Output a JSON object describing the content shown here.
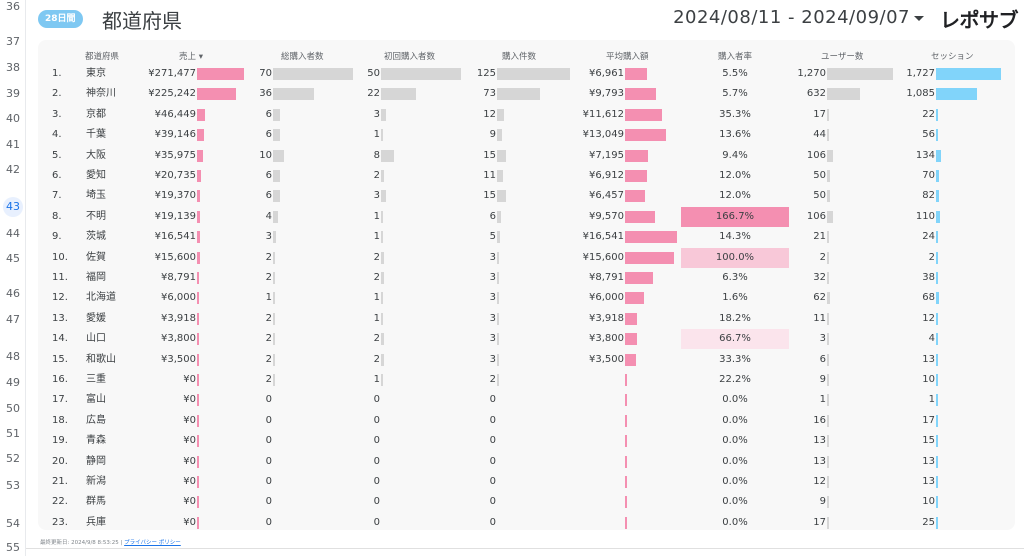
{
  "gutter_lines": [
    "36",
    "37",
    "38",
    "39",
    "40",
    "41",
    "42",
    "43",
    "44",
    "45",
    "46",
    "47",
    "48",
    "49",
    "50",
    "51",
    "52",
    "53",
    "54",
    "55"
  ],
  "gutter_active": "43",
  "header": {
    "badge": "28日間",
    "title": "都道府県",
    "date_range": "2024/08/11 - 2024/09/07",
    "brand": "レポサブ"
  },
  "columns": {
    "pref": "都道府県",
    "sales": "売上 ▾",
    "total_buyers": "総購入者数",
    "first_buyers": "初回購入者数",
    "orders": "購入件数",
    "avg": "平均購入額",
    "rate": "購入者率",
    "users": "ユーザー数",
    "sessions": "セッション"
  },
  "colors": {
    "pink": "#f48fb1",
    "grey": "#d6d6d6",
    "blue": "#81d4fa",
    "rate_strong": "#f48fb1",
    "rate_mid": "#f8c8d8",
    "rate_light": "#fbe4ec"
  },
  "max": {
    "sales": 271477,
    "buyers": 70,
    "first": 50,
    "orders": 125,
    "avg": 16541,
    "rate": 166.7,
    "users": 1270,
    "sessions": 1727
  },
  "rows": [
    {
      "idx": "1.",
      "pref": "東京",
      "sales": "¥271,477",
      "sales_v": 271477,
      "tb": "70",
      "tb_v": 70,
      "fb": "50",
      "fb_v": 50,
      "od": "125",
      "od_v": 125,
      "avg": "¥6,961",
      "avg_v": 6961,
      "rate": "5.5%",
      "rate_v": 5.5,
      "users": "1,270",
      "users_v": 1270,
      "sess": "1,727",
      "sess_v": 1727
    },
    {
      "idx": "2.",
      "pref": "神奈川",
      "sales": "¥225,242",
      "sales_v": 225242,
      "tb": "36",
      "tb_v": 36,
      "fb": "22",
      "fb_v": 22,
      "od": "73",
      "od_v": 73,
      "avg": "¥9,793",
      "avg_v": 9793,
      "rate": "5.7%",
      "rate_v": 5.7,
      "users": "632",
      "users_v": 632,
      "sess": "1,085",
      "sess_v": 1085
    },
    {
      "idx": "3.",
      "pref": "京都",
      "sales": "¥46,449",
      "sales_v": 46449,
      "tb": "6",
      "tb_v": 6,
      "fb": "3",
      "fb_v": 3,
      "od": "12",
      "od_v": 12,
      "avg": "¥11,612",
      "avg_v": 11612,
      "rate": "35.3%",
      "rate_v": 35.3,
      "users": "17",
      "users_v": 17,
      "sess": "22",
      "sess_v": 22
    },
    {
      "idx": "4.",
      "pref": "千葉",
      "sales": "¥39,146",
      "sales_v": 39146,
      "tb": "6",
      "tb_v": 6,
      "fb": "1",
      "fb_v": 1,
      "od": "9",
      "od_v": 9,
      "avg": "¥13,049",
      "avg_v": 13049,
      "rate": "13.6%",
      "rate_v": 13.6,
      "users": "44",
      "users_v": 44,
      "sess": "56",
      "sess_v": 56
    },
    {
      "idx": "5.",
      "pref": "大阪",
      "sales": "¥35,975",
      "sales_v": 35975,
      "tb": "10",
      "tb_v": 10,
      "fb": "8",
      "fb_v": 8,
      "od": "15",
      "od_v": 15,
      "avg": "¥7,195",
      "avg_v": 7195,
      "rate": "9.4%",
      "rate_v": 9.4,
      "users": "106",
      "users_v": 106,
      "sess": "134",
      "sess_v": 134
    },
    {
      "idx": "6.",
      "pref": "愛知",
      "sales": "¥20,735",
      "sales_v": 20735,
      "tb": "6",
      "tb_v": 6,
      "fb": "2",
      "fb_v": 2,
      "od": "11",
      "od_v": 11,
      "avg": "¥6,912",
      "avg_v": 6912,
      "rate": "12.0%",
      "rate_v": 12.0,
      "users": "50",
      "users_v": 50,
      "sess": "70",
      "sess_v": 70
    },
    {
      "idx": "7.",
      "pref": "埼玉",
      "sales": "¥19,370",
      "sales_v": 19370,
      "tb": "6",
      "tb_v": 6,
      "fb": "3",
      "fb_v": 3,
      "od": "15",
      "od_v": 15,
      "avg": "¥6,457",
      "avg_v": 6457,
      "rate": "12.0%",
      "rate_v": 12.0,
      "users": "50",
      "users_v": 50,
      "sess": "82",
      "sess_v": 82
    },
    {
      "idx": "8.",
      "pref": "不明",
      "sales": "¥19,139",
      "sales_v": 19139,
      "tb": "4",
      "tb_v": 4,
      "fb": "1",
      "fb_v": 1,
      "od": "6",
      "od_v": 6,
      "avg": "¥9,570",
      "avg_v": 9570,
      "rate": "166.7%",
      "rate_v": 166.7,
      "users": "106",
      "users_v": 106,
      "sess": "110",
      "sess_v": 110
    },
    {
      "idx": "9.",
      "pref": "茨城",
      "sales": "¥16,541",
      "sales_v": 16541,
      "tb": "3",
      "tb_v": 3,
      "fb": "1",
      "fb_v": 1,
      "od": "5",
      "od_v": 5,
      "avg": "¥16,541",
      "avg_v": 16541,
      "rate": "14.3%",
      "rate_v": 14.3,
      "users": "21",
      "users_v": 21,
      "sess": "24",
      "sess_v": 24
    },
    {
      "idx": "10.",
      "pref": "佐賀",
      "sales": "¥15,600",
      "sales_v": 15600,
      "tb": "2",
      "tb_v": 2,
      "fb": "2",
      "fb_v": 2,
      "od": "3",
      "od_v": 3,
      "avg": "¥15,600",
      "avg_v": 15600,
      "rate": "100.0%",
      "rate_v": 100.0,
      "users": "2",
      "users_v": 2,
      "sess": "2",
      "sess_v": 2
    },
    {
      "idx": "11.",
      "pref": "福岡",
      "sales": "¥8,791",
      "sales_v": 8791,
      "tb": "2",
      "tb_v": 2,
      "fb": "2",
      "fb_v": 2,
      "od": "3",
      "od_v": 3,
      "avg": "¥8,791",
      "avg_v": 8791,
      "rate": "6.3%",
      "rate_v": 6.3,
      "users": "32",
      "users_v": 32,
      "sess": "38",
      "sess_v": 38
    },
    {
      "idx": "12.",
      "pref": "北海道",
      "sales": "¥6,000",
      "sales_v": 6000,
      "tb": "1",
      "tb_v": 1,
      "fb": "1",
      "fb_v": 1,
      "od": "3",
      "od_v": 3,
      "avg": "¥6,000",
      "avg_v": 6000,
      "rate": "1.6%",
      "rate_v": 1.6,
      "users": "62",
      "users_v": 62,
      "sess": "68",
      "sess_v": 68
    },
    {
      "idx": "13.",
      "pref": "愛媛",
      "sales": "¥3,918",
      "sales_v": 3918,
      "tb": "2",
      "tb_v": 2,
      "fb": "1",
      "fb_v": 1,
      "od": "3",
      "od_v": 3,
      "avg": "¥3,918",
      "avg_v": 3918,
      "rate": "18.2%",
      "rate_v": 18.2,
      "users": "11",
      "users_v": 11,
      "sess": "12",
      "sess_v": 12
    },
    {
      "idx": "14.",
      "pref": "山口",
      "sales": "¥3,800",
      "sales_v": 3800,
      "tb": "2",
      "tb_v": 2,
      "fb": "2",
      "fb_v": 2,
      "od": "3",
      "od_v": 3,
      "avg": "¥3,800",
      "avg_v": 3800,
      "rate": "66.7%",
      "rate_v": 66.7,
      "users": "3",
      "users_v": 3,
      "sess": "4",
      "sess_v": 4
    },
    {
      "idx": "15.",
      "pref": "和歌山",
      "sales": "¥3,500",
      "sales_v": 3500,
      "tb": "2",
      "tb_v": 2,
      "fb": "2",
      "fb_v": 2,
      "od": "3",
      "od_v": 3,
      "avg": "¥3,500",
      "avg_v": 3500,
      "rate": "33.3%",
      "rate_v": 33.3,
      "users": "6",
      "users_v": 6,
      "sess": "13",
      "sess_v": 13
    },
    {
      "idx": "16.",
      "pref": "三重",
      "sales": "¥0",
      "sales_v": 0,
      "tb": "2",
      "tb_v": 2,
      "fb": "1",
      "fb_v": 1,
      "od": "2",
      "od_v": 2,
      "avg": "",
      "avg_v": 0,
      "rate": "22.2%",
      "rate_v": 22.2,
      "users": "9",
      "users_v": 9,
      "sess": "10",
      "sess_v": 10
    },
    {
      "idx": "17.",
      "pref": "富山",
      "sales": "¥0",
      "sales_v": 0,
      "tb": "0",
      "tb_v": 0,
      "fb": "0",
      "fb_v": 0,
      "od": "0",
      "od_v": 0,
      "avg": "",
      "avg_v": 0,
      "rate": "0.0%",
      "rate_v": 0,
      "users": "1",
      "users_v": 1,
      "sess": "1",
      "sess_v": 1
    },
    {
      "idx": "18.",
      "pref": "広島",
      "sales": "¥0",
      "sales_v": 0,
      "tb": "0",
      "tb_v": 0,
      "fb": "0",
      "fb_v": 0,
      "od": "0",
      "od_v": 0,
      "avg": "",
      "avg_v": 0,
      "rate": "0.0%",
      "rate_v": 0,
      "users": "16",
      "users_v": 16,
      "sess": "17",
      "sess_v": 17
    },
    {
      "idx": "19.",
      "pref": "青森",
      "sales": "¥0",
      "sales_v": 0,
      "tb": "0",
      "tb_v": 0,
      "fb": "0",
      "fb_v": 0,
      "od": "0",
      "od_v": 0,
      "avg": "",
      "avg_v": 0,
      "rate": "0.0%",
      "rate_v": 0,
      "users": "13",
      "users_v": 13,
      "sess": "15",
      "sess_v": 15
    },
    {
      "idx": "20.",
      "pref": "静岡",
      "sales": "¥0",
      "sales_v": 0,
      "tb": "0",
      "tb_v": 0,
      "fb": "0",
      "fb_v": 0,
      "od": "0",
      "od_v": 0,
      "avg": "",
      "avg_v": 0,
      "rate": "0.0%",
      "rate_v": 0,
      "users": "13",
      "users_v": 13,
      "sess": "13",
      "sess_v": 13
    },
    {
      "idx": "21.",
      "pref": "新潟",
      "sales": "¥0",
      "sales_v": 0,
      "tb": "0",
      "tb_v": 0,
      "fb": "0",
      "fb_v": 0,
      "od": "0",
      "od_v": 0,
      "avg": "",
      "avg_v": 0,
      "rate": "0.0%",
      "rate_v": 0,
      "users": "12",
      "users_v": 12,
      "sess": "13",
      "sess_v": 13
    },
    {
      "idx": "22.",
      "pref": "群馬",
      "sales": "¥0",
      "sales_v": 0,
      "tb": "0",
      "tb_v": 0,
      "fb": "0",
      "fb_v": 0,
      "od": "0",
      "od_v": 0,
      "avg": "",
      "avg_v": 0,
      "rate": "0.0%",
      "rate_v": 0,
      "users": "9",
      "users_v": 9,
      "sess": "10",
      "sess_v": 10
    },
    {
      "idx": "23.",
      "pref": "兵庫",
      "sales": "¥0",
      "sales_v": 0,
      "tb": "0",
      "tb_v": 0,
      "fb": "0",
      "fb_v": 0,
      "od": "0",
      "od_v": 0,
      "avg": "",
      "avg_v": 0,
      "rate": "0.0%",
      "rate_v": 0,
      "users": "17",
      "users_v": 17,
      "sess": "25",
      "sess_v": 25
    }
  ],
  "footer": {
    "updated": "最終更新日: 2024/9/8 8:53:25",
    "separator": "|",
    "privacy": "プライバシー ポリシー"
  }
}
